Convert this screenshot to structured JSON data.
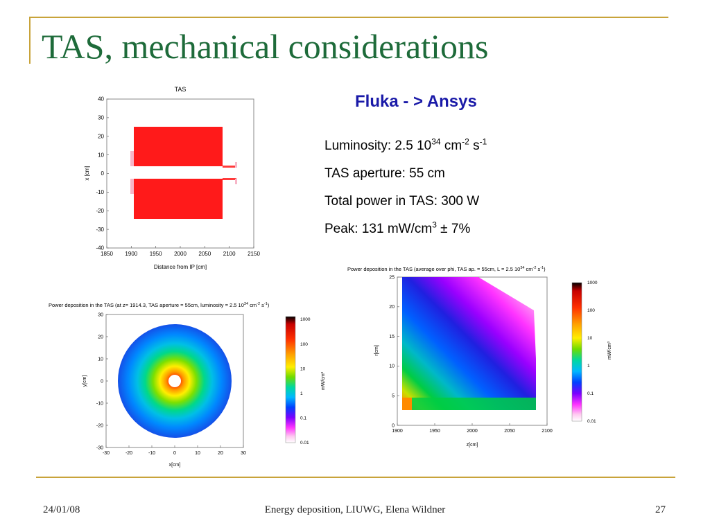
{
  "slide": {
    "title": "TAS, mechanical considerations",
    "subtitle": "Fluka - > Ansys",
    "facts": [
      {
        "text": "Luminosity: 2.5 10",
        "sup1": "34",
        "mid": " cm",
        "sup2": "-2",
        "mid2": " s",
        "sup3": "-1"
      },
      {
        "text": "TAS aperture: 55 cm"
      },
      {
        "text": "Total power in TAS: 300 W"
      },
      {
        "text": "Peak: 131 mW/cm",
        "sup1": "3",
        "mid": " ± 7%"
      }
    ],
    "footer": {
      "date": "24/01/08",
      "center": "Energy deposition, LIUWG, Elena Wildner",
      "page": "27"
    }
  },
  "plot1": {
    "title": "TAS",
    "xlabel": "Distance from IP [cm]",
    "ylabel": "x [cm]",
    "xticks": [
      "1850",
      "1900",
      "1950",
      "2000",
      "2050",
      "2100",
      "2150"
    ],
    "yticks": [
      "40",
      "30",
      "20",
      "10",
      "0",
      "-10",
      "-20",
      "-30",
      "-40"
    ]
  },
  "plot2": {
    "title": "Power deposition in the TAS (at z= 1914.3, TAS aperture = 55cm, luminosity = 2.5 10",
    "title_sup1": "34",
    "title_mid": " cm",
    "title_sup2": "-2",
    "title_mid2": " s",
    "title_sup3": "-1",
    "title_end": ")",
    "xlabel": "x[cm]",
    "ylabel": "y[cm]",
    "xticks": [
      "-30",
      "-20",
      "-10",
      "0",
      "10",
      "20",
      "30"
    ],
    "yticks": [
      "30",
      "20",
      "10",
      "0",
      "-10",
      "-20",
      "-30"
    ],
    "colorbar_ticks": [
      "1000",
      "100",
      "10",
      "1",
      "0.1",
      "0.01"
    ],
    "colorbar_unit": "mW/cm³"
  },
  "plot3": {
    "title": "Power deposition in the TAS (average over phi, TAS ap. = 55cm, L = 2.5 10",
    "title_sup1": "34",
    "title_mid": " cm",
    "title_sup2": "-2",
    "title_mid2": " s",
    "title_sup3": "-1",
    "title_end": ")",
    "xlabel": "z[cm]",
    "ylabel": "r[cm]",
    "xticks": [
      "1900",
      "1950",
      "2000",
      "2050",
      "2100"
    ],
    "yticks": [
      "25",
      "20",
      "15",
      "10",
      "5",
      "0"
    ],
    "colorbar_ticks": [
      "1000",
      "100",
      "10",
      "1",
      "0.1",
      "0.01"
    ],
    "colorbar_unit": "mW/cm³"
  },
  "colors": {
    "title": "#1e6b3a",
    "subtitle": "#1a1aa8",
    "frame": "#c8a33a",
    "absorber": "#ff1a1a"
  }
}
